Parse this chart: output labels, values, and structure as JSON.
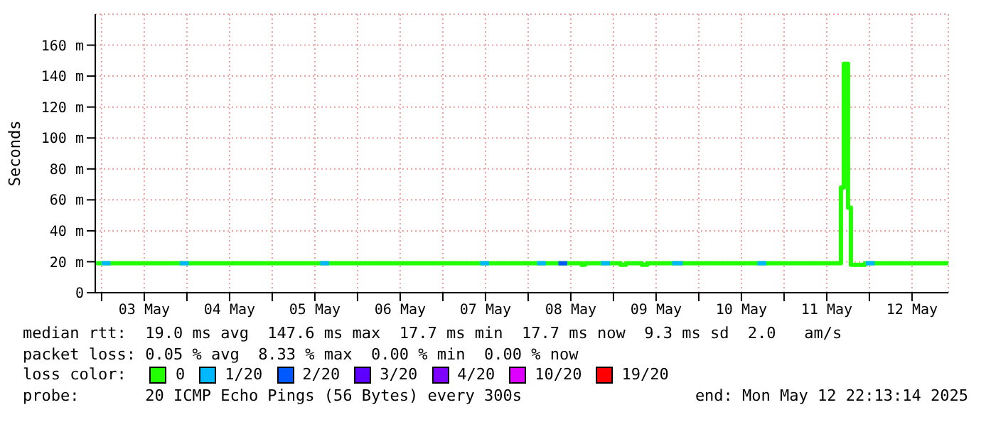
{
  "chart_data": {
    "type": "step",
    "ylabel": "Seconds",
    "legend_title": "loss color:",
    "legend": "bottom",
    "grid": true,
    "x": [
      "2025-05-02T22:15",
      "2025-05-08T15:00",
      "2025-05-08T16:00",
      "2025-05-09T02:00",
      "2025-05-09T03:30",
      "2025-05-09T08:00",
      "2025-05-09T09:30",
      "2025-05-11T16:00",
      "2025-05-11T16:48",
      "2025-05-11T18:00",
      "2025-05-11T18:48",
      "2025-05-11T22:45",
      "2025-05-12T22:13"
    ],
    "series": [
      {
        "name": "0",
        "color": "#22ff00",
        "values": [
          19,
          18,
          19,
          18,
          19,
          18,
          19,
          68,
          148,
          55,
          18,
          19,
          19
        ]
      },
      {
        "name": "1/20",
        "color": "#00b8ff",
        "x": [
          "2025-05-03T00:00",
          "2025-05-03T02:30",
          "2025-05-03T12:00",
          "2025-05-03T22:00",
          "2025-05-04T00:30",
          "2025-05-04T12:00",
          "2025-05-05T13:30",
          "2025-05-05T16:00",
          "2025-05-06T12:00",
          "2025-05-07T10:30",
          "2025-05-07T13:00",
          "2025-05-07T20:00",
          "2025-05-08T02:30",
          "2025-05-08T05:00",
          "2025-05-08T12:00",
          "2025-05-08T20:30",
          "2025-05-08T23:00",
          "2025-05-09T12:00",
          "2025-05-09T16:30",
          "2025-05-09T19:30",
          "2025-05-10T12:00",
          "2025-05-10T16:30",
          "2025-05-10T19:00",
          "2025-05-11T12:00",
          "2025-05-11T23:00",
          "2025-05-12T01:30"
        ],
        "values": [
          19,
          19,
          null,
          19,
          19,
          null,
          19,
          19,
          null,
          19,
          19,
          null,
          19,
          19,
          null,
          19,
          19,
          null,
          19,
          19,
          null,
          19,
          19,
          null,
          19,
          19
        ]
      },
      {
        "name": "2/20",
        "color": "#0059ff",
        "x": [
          "2025-05-08T08:30",
          "2025-05-08T11:00"
        ],
        "values": [
          19,
          19
        ]
      },
      {
        "name": "3/20",
        "color": "#5e00ff",
        "values": [
          null,
          null,
          null,
          null,
          null,
          null,
          null,
          null,
          null,
          null,
          null,
          null,
          null
        ]
      },
      {
        "name": "4/20",
        "color": "#7e00ff",
        "values": [
          null,
          null,
          null,
          null,
          null,
          null,
          null,
          null,
          null,
          null,
          null,
          null,
          null
        ]
      },
      {
        "name": "10/20",
        "color": "#dd00ff",
        "values": [
          null,
          null,
          null,
          null,
          null,
          null,
          null,
          null,
          null,
          null,
          null,
          null,
          null
        ]
      },
      {
        "name": "19/20",
        "color": "#ff0000",
        "values": [
          null,
          null,
          null,
          null,
          null,
          null,
          null,
          null,
          null,
          null,
          null,
          null,
          null
        ]
      }
    ],
    "xlim": [
      "2025-05-02T22:13",
      "2025-05-12T22:13"
    ],
    "xticks": [
      {
        "value": "2025-05-03T00:00",
        "label": null
      },
      {
        "value": "2025-05-03T12:00",
        "label": "03 May"
      },
      {
        "value": "2025-05-04T00:00",
        "label": null
      },
      {
        "value": "2025-05-04T12:00",
        "label": "04 May"
      },
      {
        "value": "2025-05-05T00:00",
        "label": null
      },
      {
        "value": "2025-05-05T12:00",
        "label": "05 May"
      },
      {
        "value": "2025-05-06T00:00",
        "label": null
      },
      {
        "value": "2025-05-06T12:00",
        "label": "06 May"
      },
      {
        "value": "2025-05-07T00:00",
        "label": null
      },
      {
        "value": "2025-05-07T12:00",
        "label": "07 May"
      },
      {
        "value": "2025-05-08T00:00",
        "label": null
      },
      {
        "value": "2025-05-08T12:00",
        "label": "08 May"
      },
      {
        "value": "2025-05-09T00:00",
        "label": null
      },
      {
        "value": "2025-05-09T12:00",
        "label": "09 May"
      },
      {
        "value": "2025-05-10T00:00",
        "label": null
      },
      {
        "value": "2025-05-10T12:00",
        "label": "10 May"
      },
      {
        "value": "2025-05-11T00:00",
        "label": null
      },
      {
        "value": "2025-05-11T12:00",
        "label": "11 May"
      },
      {
        "value": "2025-05-12T00:00",
        "label": null
      },
      {
        "value": "2025-05-12T12:00",
        "label": "12 May"
      }
    ],
    "ylim": [
      0,
      180
    ],
    "yticks": [
      0,
      {
        "value": 20,
        "label": "20 m"
      },
      {
        "value": 40,
        "label": "40 m"
      },
      {
        "value": 60,
        "label": "60 m"
      },
      {
        "value": 80,
        "label": "80 m"
      },
      {
        "value": 100,
        "label": "100 m"
      },
      {
        "value": 120,
        "label": "120 m"
      },
      {
        "value": 140,
        "label": "140 m"
      },
      {
        "value": 160,
        "label": "160 m"
      }
    ],
    "annotations": [
      "median rtt:  19.0 ms avg  147.6 ms max  17.7 ms min  17.7 ms now  9.3 ms sd  2.0   am/s",
      "packet loss: 0.05 % avg  8.33 % max  0.00 % min  0.00 % now",
      "probe:       20 ICMP Echo Pings (56 Bytes) every 300s",
      "end: Mon May 12 22:13:14 2025"
    ]
  }
}
